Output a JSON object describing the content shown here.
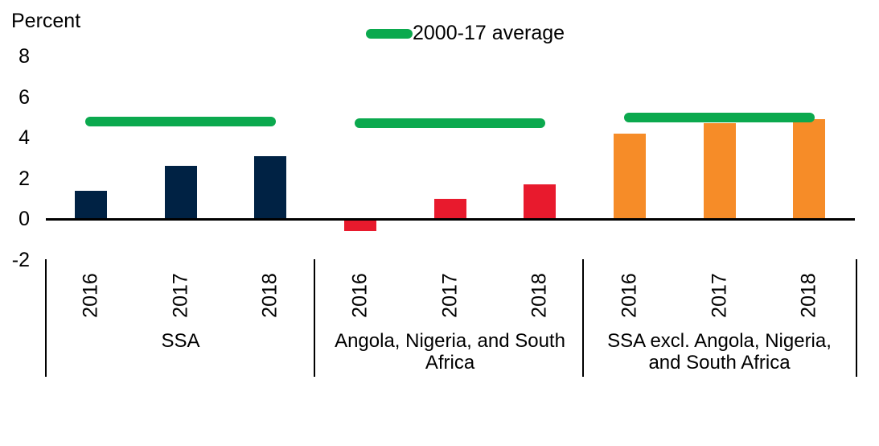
{
  "unit_label": "Percent",
  "legend": {
    "label": "2000-17 average",
    "color": "#0BA94E"
  },
  "colors": {
    "ssa_bars": "#002244",
    "angola_nigeria_south_africa_bars": "#E81A2D",
    "ssa_excl_bars": "#F68C28",
    "average_line": "#0BA94E",
    "axis": "#000000",
    "text": "#000000",
    "background": "#FFFFFF"
  },
  "chart_data": {
    "type": "bar",
    "unit_label": "Percent",
    "legend_entries": [
      "2000-17 average"
    ],
    "legend_position": "top-center",
    "grid": false,
    "ylim": [
      -2,
      8
    ],
    "yticks": [
      8,
      6,
      4,
      2,
      0,
      -2
    ],
    "categories_years": [
      "2016",
      "2017",
      "2018"
    ],
    "groups": [
      {
        "label": "SSA",
        "label_lines": [
          "SSA"
        ],
        "color": "#002244",
        "values": [
          1.4,
          2.6,
          3.1
        ],
        "average_2000_17": 4.8
      },
      {
        "label": "Angola, Nigeria, and South Africa",
        "label_lines": [
          "Angola, Nigeria, and South",
          "Africa"
        ],
        "color": "#E81A2D",
        "values": [
          -0.6,
          1.0,
          1.7
        ],
        "average_2000_17": 4.7
      },
      {
        "label": "SSA excl. Angola, Nigeria, and South Africa",
        "label_lines": [
          "SSA excl. Angola, Nigeria,",
          "and South Africa"
        ],
        "color": "#F68C28",
        "values": [
          4.2,
          4.7,
          4.9
        ],
        "average_2000_17": 5.0
      }
    ],
    "average_line_color": "#0BA94E"
  }
}
